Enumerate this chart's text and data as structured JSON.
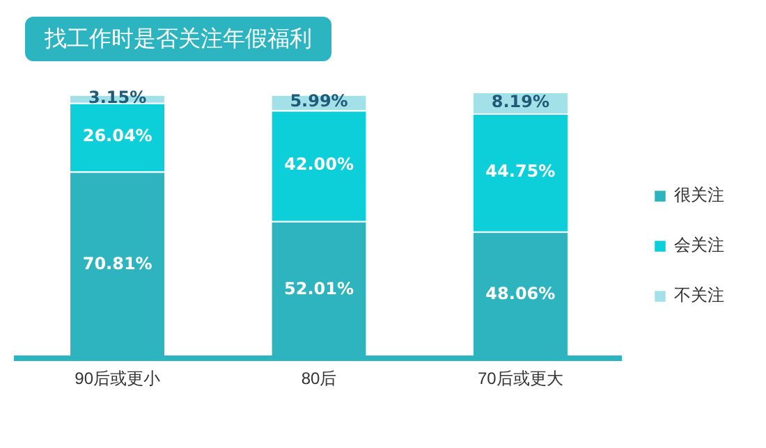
{
  "chart_data": {
    "type": "bar",
    "stacked": true,
    "title": "找工作时是否关注年假福利",
    "categories": [
      "90后或更小",
      "80后",
      "70后或更大"
    ],
    "series": [
      {
        "name": "很关注",
        "color": "#2db4be",
        "values": [
          70.81,
          52.01,
          48.06
        ],
        "value_labels": [
          "70.81%",
          "52.01%",
          "48.06%"
        ]
      },
      {
        "name": "会关注",
        "color": "#0ccfd9",
        "values": [
          26.04,
          42.0,
          44.75
        ],
        "value_labels": [
          "26.04%",
          "42.00%",
          "44.75%"
        ]
      },
      {
        "name": "不关注",
        "color": "#a3e1e8",
        "values": [
          3.15,
          5.99,
          8.19
        ],
        "value_labels": [
          "3.15%",
          "5.99%",
          "8.19%"
        ]
      }
    ],
    "legend": "right",
    "grid": false
  }
}
